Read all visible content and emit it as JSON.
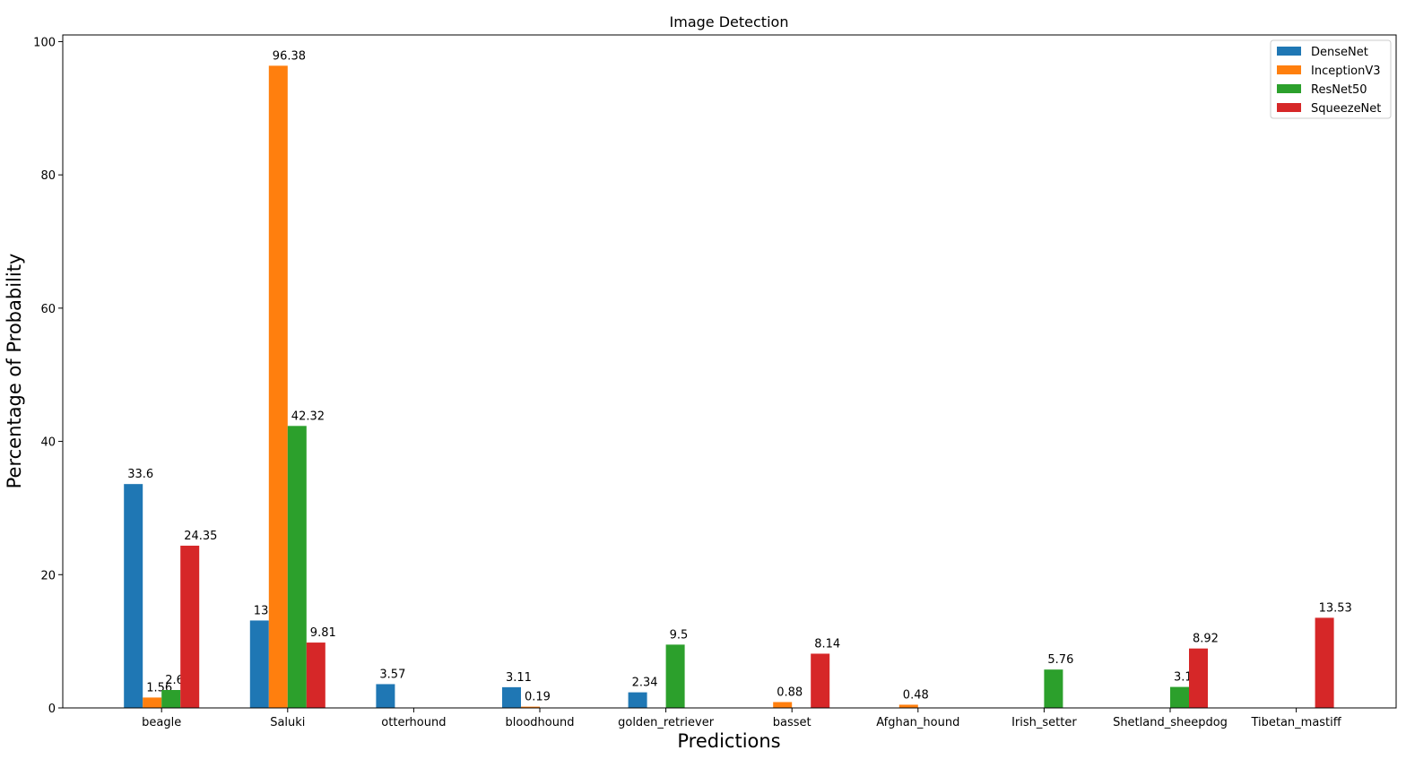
{
  "chart_data": {
    "type": "bar",
    "title": "Image Detection",
    "xlabel": "Predictions",
    "ylabel": "Percentage of Probability",
    "ylim": [
      0,
      101
    ],
    "yticks": [
      0,
      20,
      40,
      60,
      80,
      100
    ],
    "legend_position": "top-right",
    "grid": false,
    "categories": [
      "beagle",
      "Saluki",
      "otterhound",
      "bloodhound",
      "golden_retriever",
      "basset",
      "Afghan_hound",
      "Irish_setter",
      "Shetland_sheepdog",
      "Tibetan_mastiff"
    ],
    "series": [
      {
        "name": "DenseNet",
        "color": "#1f77b4",
        "values": [
          33.6,
          13.12,
          3.57,
          3.11,
          2.34,
          null,
          null,
          null,
          null,
          null
        ]
      },
      {
        "name": "InceptionV3",
        "color": "#ff7f0e",
        "values": [
          1.56,
          96.38,
          null,
          0.19,
          null,
          0.88,
          0.48,
          null,
          null,
          null
        ]
      },
      {
        "name": "ResNet50",
        "color": "#2ca02c",
        "values": [
          2.69,
          42.32,
          null,
          null,
          9.5,
          null,
          null,
          5.76,
          3.15,
          null
        ]
      },
      {
        "name": "SqueezeNet",
        "color": "#d62728",
        "values": [
          24.35,
          9.81,
          null,
          null,
          null,
          8.14,
          null,
          null,
          8.92,
          13.53
        ]
      }
    ]
  }
}
